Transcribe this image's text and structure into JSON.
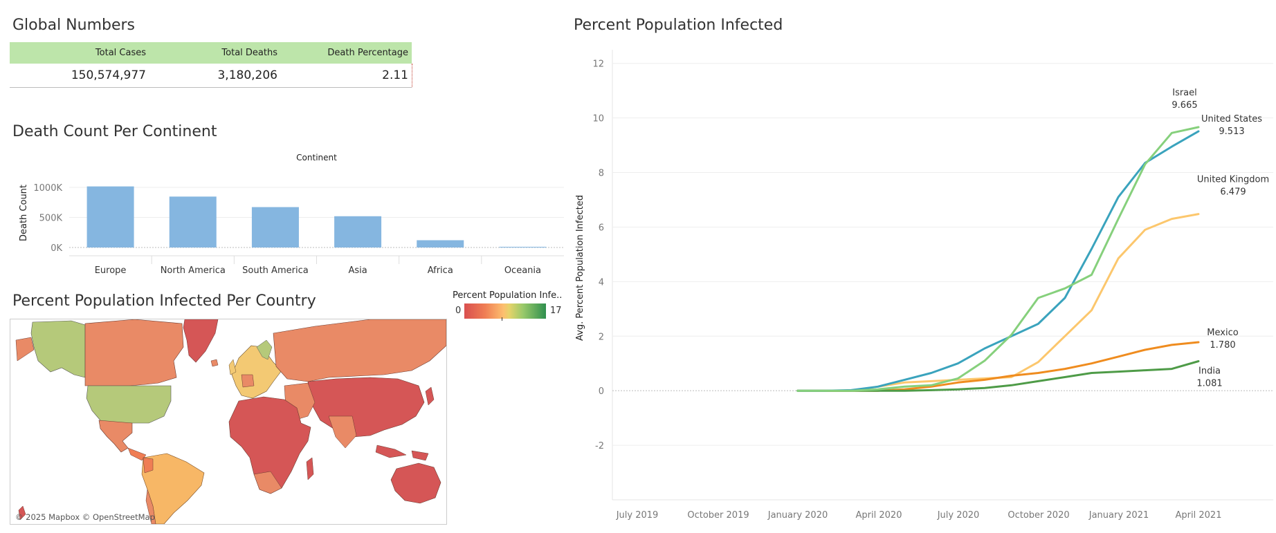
{
  "global_numbers": {
    "title": "Global Numbers",
    "headers": [
      "Total Cases",
      "Total Deaths",
      "Death Percentage"
    ],
    "values": [
      "150,574,977",
      "3,180,206",
      "2.11"
    ]
  },
  "death_count": {
    "title": "Death Count Per Continent"
  },
  "map_section": {
    "title": "Percent Population Infected Per Country",
    "legend_title": "Percent Population Infe..",
    "legend_min": "0",
    "legend_max": "17",
    "credit": "© 2025 Mapbox © OpenStreetMap"
  },
  "line_section": {
    "title": "Percent Population Infected"
  },
  "colors": {
    "bar": "#85b6e0",
    "header_bg": "#bde5aa"
  },
  "chart_data": [
    {
      "type": "bar",
      "header": "Continent",
      "categories": [
        "Europe",
        "North America",
        "South America",
        "Asia",
        "Africa",
        "Oceania"
      ],
      "values": [
        1016000,
        847000,
        672000,
        520000,
        121000,
        1000
      ],
      "ylabel": "Death Count",
      "yticks": [
        "0K",
        "500K",
        "1000K"
      ],
      "ylim": [
        0,
        1150000
      ],
      "grid": true
    },
    {
      "type": "line",
      "ylabel": "Avg. Percent Population Infected",
      "ylim": [
        -4,
        12.5
      ],
      "yticks": [
        -2,
        0,
        2,
        4,
        6,
        8,
        10,
        12
      ],
      "xticks": [
        "July 2019",
        "October 2019",
        "January 2020",
        "April 2020",
        "July 2020",
        "October 2020",
        "January 2021",
        "April 2021"
      ],
      "x": [
        "2020-01",
        "2020-02",
        "2020-03",
        "2020-04",
        "2020-05",
        "2020-06",
        "2020-07",
        "2020-08",
        "2020-09",
        "2020-10",
        "2020-11",
        "2020-12",
        "2021-01",
        "2021-02",
        "2021-03",
        "2021-04"
      ],
      "series": [
        {
          "name": "Israel",
          "label": "9.665",
          "color": "#86d07c",
          "values": [
            0,
            0,
            0,
            0.05,
            0.15,
            0.2,
            0.45,
            1.1,
            2.05,
            3.4,
            3.75,
            4.25,
            6.3,
            8.3,
            9.45,
            9.665
          ]
        },
        {
          "name": "United States",
          "label": "9.513",
          "color": "#3aa3bd",
          "values": [
            0,
            0,
            0.02,
            0.15,
            0.4,
            0.65,
            1.0,
            1.55,
            2.0,
            2.45,
            3.4,
            5.2,
            7.1,
            8.35,
            8.95,
            9.513
          ]
        },
        {
          "name": "United Kingdom",
          "label": "6.479",
          "color": "#fcc76d",
          "values": [
            0,
            0,
            0,
            0.15,
            0.3,
            0.35,
            0.4,
            0.45,
            0.5,
            1.05,
            2.0,
            2.95,
            4.85,
            5.9,
            6.3,
            6.479
          ]
        },
        {
          "name": "Mexico",
          "label": "1.780",
          "color": "#ef8c1f",
          "values": [
            0,
            0,
            0,
            0,
            0.05,
            0.15,
            0.3,
            0.4,
            0.55,
            0.65,
            0.8,
            1.0,
            1.25,
            1.5,
            1.68,
            1.78
          ]
        },
        {
          "name": "India",
          "label": "1.081",
          "color": "#4e9b47",
          "values": [
            0,
            0,
            0,
            0,
            0,
            0.02,
            0.05,
            0.1,
            0.2,
            0.35,
            0.5,
            0.65,
            0.7,
            0.75,
            0.8,
            1.081
          ]
        }
      ]
    }
  ]
}
